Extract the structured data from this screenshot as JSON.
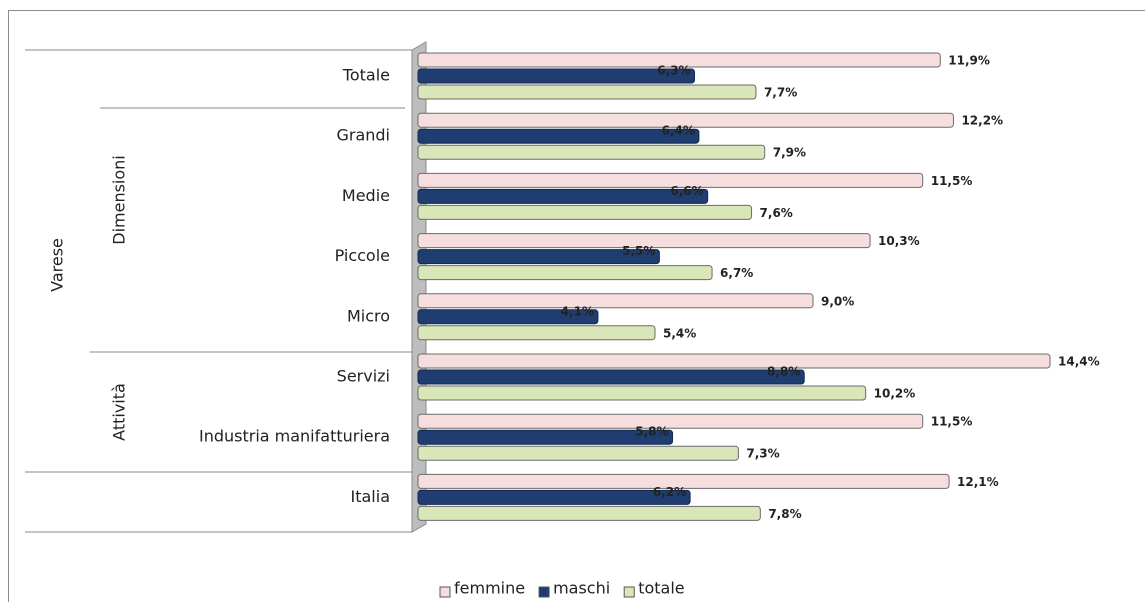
{
  "chart_data": {
    "type": "bar",
    "orientation": "horizontal",
    "categories": [
      "Totale",
      "Grandi",
      "Medie",
      "Piccole",
      "Micro",
      "Servizi",
      "Industria manifatturiera",
      "Italia"
    ],
    "groups": [
      {
        "label": "Varese"
      },
      {
        "label": "Dimensioni"
      },
      {
        "label": "Attività"
      }
    ],
    "series": [
      {
        "name": "femmine",
        "color": "#f7dede",
        "values": [
          11.9,
          12.2,
          11.5,
          10.3,
          9.0,
          14.4,
          11.5,
          12.1
        ],
        "value_labels": [
          "11,9%",
          "12,2%",
          "11,5%",
          "10,3%",
          "9,0%",
          "14,4%",
          "11,5%",
          "12,1%"
        ]
      },
      {
        "name": "maschi",
        "color": "#1f3d70",
        "values": [
          6.3,
          6.4,
          6.6,
          5.5,
          4.1,
          8.8,
          5.8,
          6.2
        ],
        "value_labels": [
          "6,3%",
          "6,4%",
          "6,6%",
          "5,5%",
          "4,1%",
          "8,8%",
          "5,8%",
          "6,2%"
        ]
      },
      {
        "name": "totale",
        "color": "#d9e6b8",
        "values": [
          7.7,
          7.9,
          7.6,
          6.7,
          5.4,
          10.2,
          7.3,
          7.8
        ],
        "value_labels": [
          "7,7%",
          "7,9%",
          "7,6%",
          "6,7%",
          "5,4%",
          "10,2%",
          "7,3%",
          "7,8%"
        ]
      }
    ],
    "legend": "bottom"
  }
}
